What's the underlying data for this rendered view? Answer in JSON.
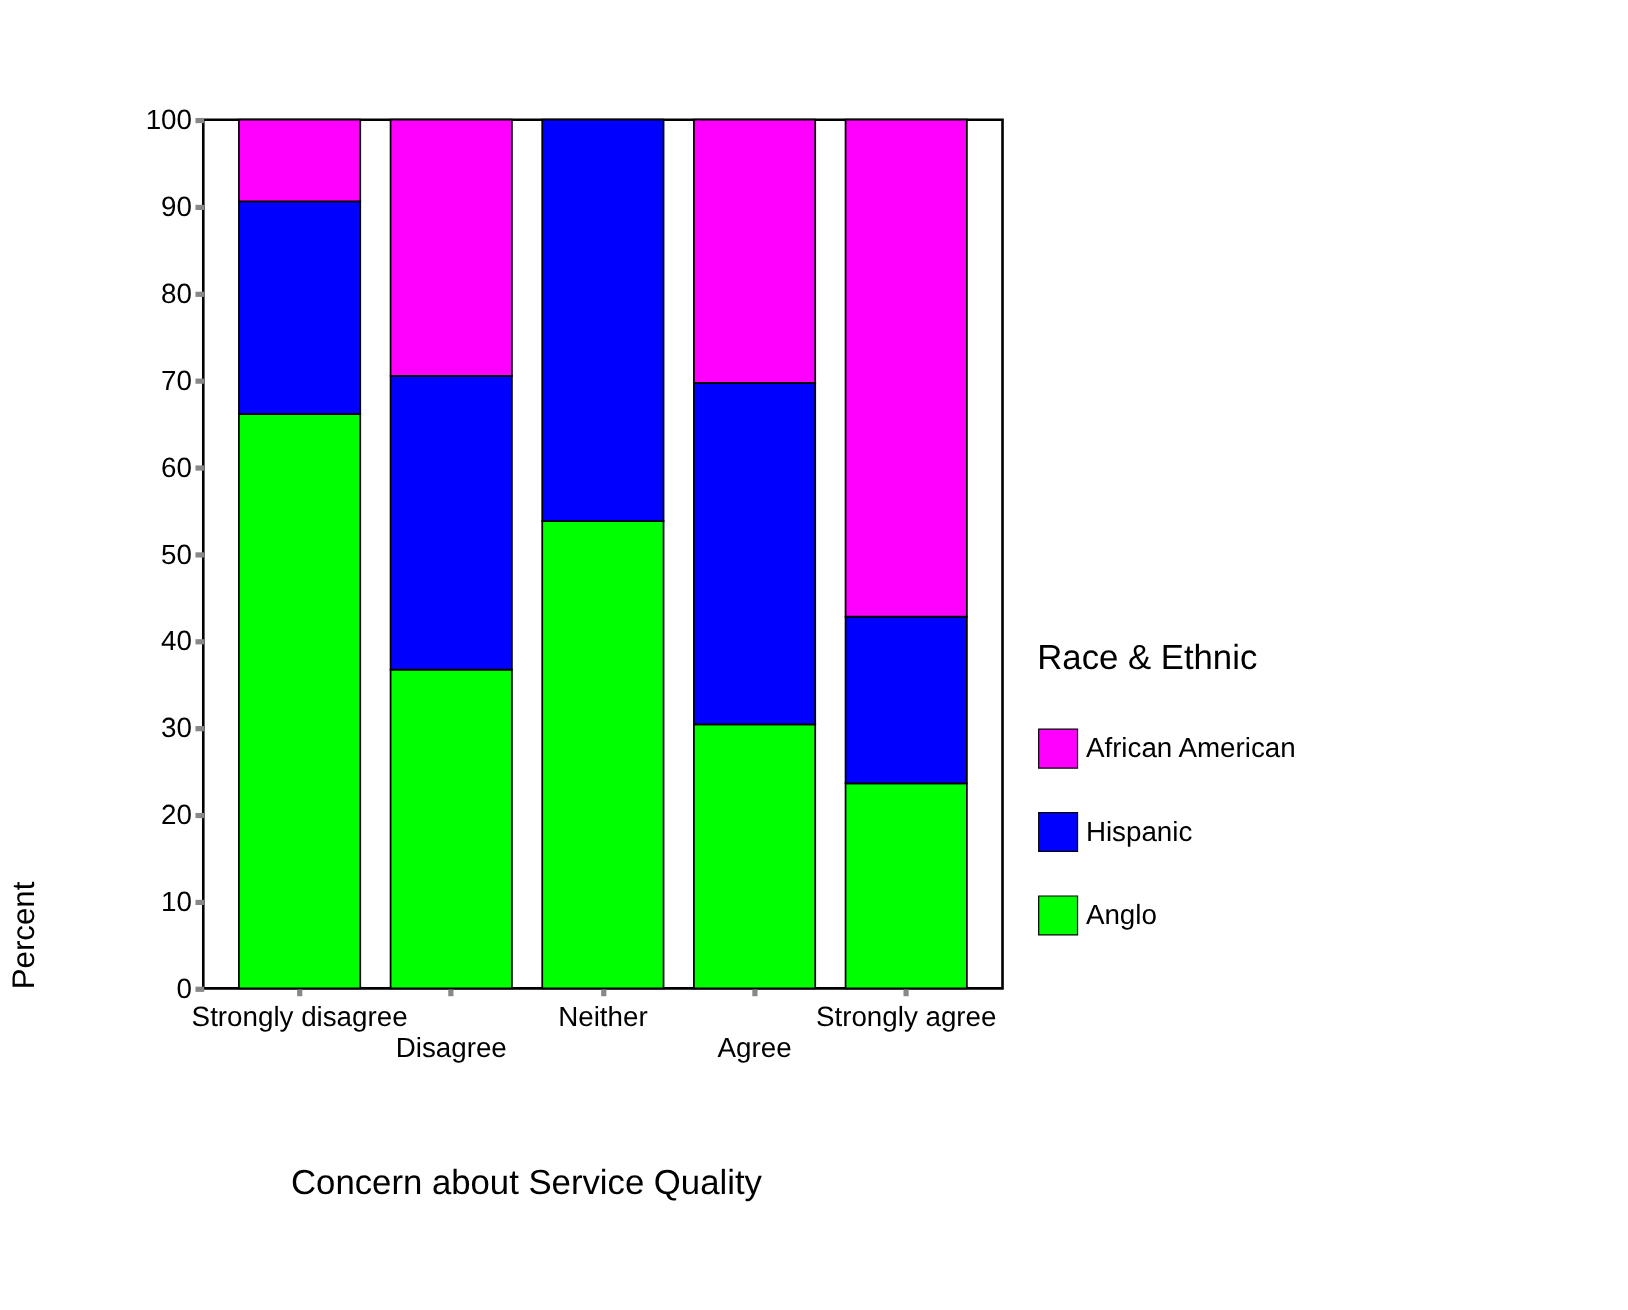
{
  "chart_data": {
    "type": "bar",
    "stacked": true,
    "xlabel": "Concern about Service Quality",
    "ylabel": "Percent",
    "legend_title": "Race & Ethnic",
    "categories": [
      "Strongly disagree",
      "Disagree",
      "Neither",
      "Agree",
      "Strongly agree"
    ],
    "series": [
      {
        "name": "Anglo",
        "color": "#00ff00",
        "values": [
          66.1,
          36.7,
          53.8,
          30.4,
          23.6
        ]
      },
      {
        "name": "Hispanic",
        "color": "#0000ff",
        "values": [
          24.5,
          33.8,
          46.2,
          39.3,
          19.2
        ]
      },
      {
        "name": "African American",
        "color": "#ff00ff",
        "values": [
          9.4,
          29.5,
          null,
          30.3,
          57.2
        ]
      }
    ],
    "ylim": [
      0,
      100
    ],
    "yticks": [
      0,
      10,
      20,
      30,
      40,
      50,
      60,
      70,
      80,
      90,
      100
    ],
    "grid": false,
    "legend": "right"
  }
}
